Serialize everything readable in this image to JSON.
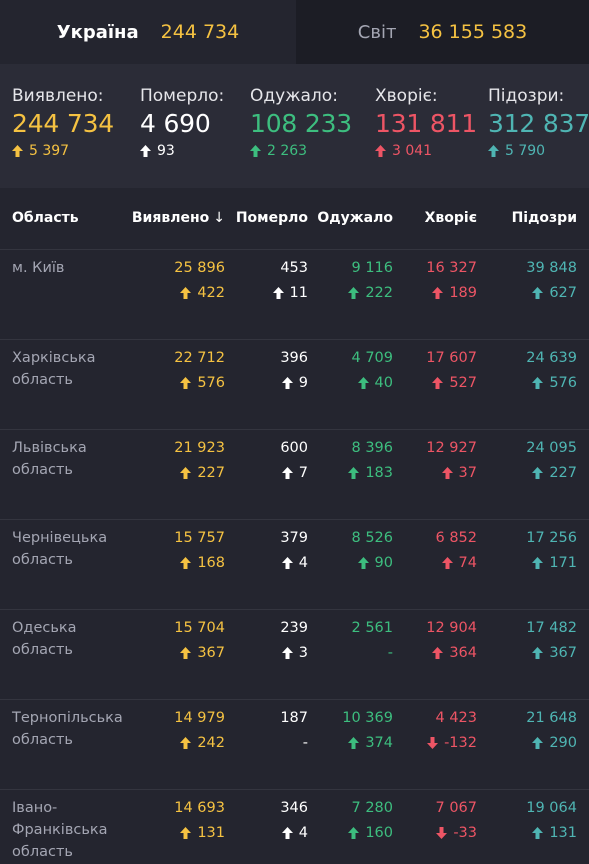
{
  "tabs": [
    {
      "label": "Україна",
      "count": "244 734"
    },
    {
      "label": "Світ",
      "count": "36 155 583"
    }
  ],
  "summary": [
    {
      "label": "Виявлено:",
      "value": "244 734",
      "delta": "5 397",
      "dir": "up",
      "color": "#f5c242"
    },
    {
      "label": "Померло:",
      "value": "4 690",
      "delta": "93",
      "dir": "up",
      "color": "#ffffff"
    },
    {
      "label": "Одужало:",
      "value": "108 233",
      "delta": "2 263",
      "dir": "up",
      "color": "#3dbe7f"
    },
    {
      "label": "Хворіє:",
      "value": "131 811",
      "delta": "3 041",
      "dir": "up",
      "color": "#ed5565"
    },
    {
      "label": "Підозри:",
      "value": "312 837",
      "delta": "5 790",
      "dir": "up",
      "color": "#4fb5b3"
    }
  ],
  "table": {
    "headers": {
      "region": "Область",
      "confirmed": "Виявлено",
      "deaths": "Померло",
      "recovered": "Одужало",
      "active": "Хворіє",
      "suspected": "Підозри"
    },
    "rows": [
      {
        "region": "м. Київ",
        "confirmed": [
          "25 896",
          "422",
          "up"
        ],
        "deaths": [
          "453",
          "11",
          "up"
        ],
        "recovered": [
          "9 116",
          "222",
          "up"
        ],
        "active": [
          "16 327",
          "189",
          "up"
        ],
        "suspected": [
          "39 848",
          "627",
          "up"
        ]
      },
      {
        "region": "Харківська область",
        "confirmed": [
          "22 712",
          "576",
          "up"
        ],
        "deaths": [
          "396",
          "9",
          "up"
        ],
        "recovered": [
          "4 709",
          "40",
          "up"
        ],
        "active": [
          "17 607",
          "527",
          "up"
        ],
        "suspected": [
          "24 639",
          "576",
          "up"
        ]
      },
      {
        "region": "Львівська область",
        "confirmed": [
          "21 923",
          "227",
          "up"
        ],
        "deaths": [
          "600",
          "7",
          "up"
        ],
        "recovered": [
          "8 396",
          "183",
          "up"
        ],
        "active": [
          "12 927",
          "37",
          "up"
        ],
        "suspected": [
          "24 095",
          "227",
          "up"
        ]
      },
      {
        "region": "Чернівецька область",
        "confirmed": [
          "15 757",
          "168",
          "up"
        ],
        "deaths": [
          "379",
          "4",
          "up"
        ],
        "recovered": [
          "8 526",
          "90",
          "up"
        ],
        "active": [
          "6 852",
          "74",
          "up"
        ],
        "suspected": [
          "17 256",
          "171",
          "up"
        ]
      },
      {
        "region": "Одеська область",
        "confirmed": [
          "15 704",
          "367",
          "up"
        ],
        "deaths": [
          "239",
          "3",
          "up"
        ],
        "recovered": [
          "2 561",
          "-",
          "none"
        ],
        "active": [
          "12 904",
          "364",
          "up"
        ],
        "suspected": [
          "17 482",
          "367",
          "up"
        ]
      },
      {
        "region": "Тернопільська область",
        "confirmed": [
          "14 979",
          "242",
          "up"
        ],
        "deaths": [
          "187",
          "-",
          "none"
        ],
        "recovered": [
          "10 369",
          "374",
          "up"
        ],
        "active": [
          "4 423",
          "-132",
          "down"
        ],
        "suspected": [
          "21 648",
          "290",
          "up"
        ]
      },
      {
        "region": "Івано-Франківська область",
        "confirmed": [
          "14 693",
          "131",
          "up"
        ],
        "deaths": [
          "346",
          "4",
          "up"
        ],
        "recovered": [
          "7 280",
          "160",
          "up"
        ],
        "active": [
          "7 067",
          "-33",
          "down"
        ],
        "suspected": [
          "19 064",
          "131",
          "up"
        ]
      }
    ]
  },
  "colors": {
    "confirmed": "#f5c242",
    "deaths": "#ffffff",
    "recovered": "#3dbe7f",
    "active": "#ed5565",
    "suspected": "#4fb5b3"
  }
}
